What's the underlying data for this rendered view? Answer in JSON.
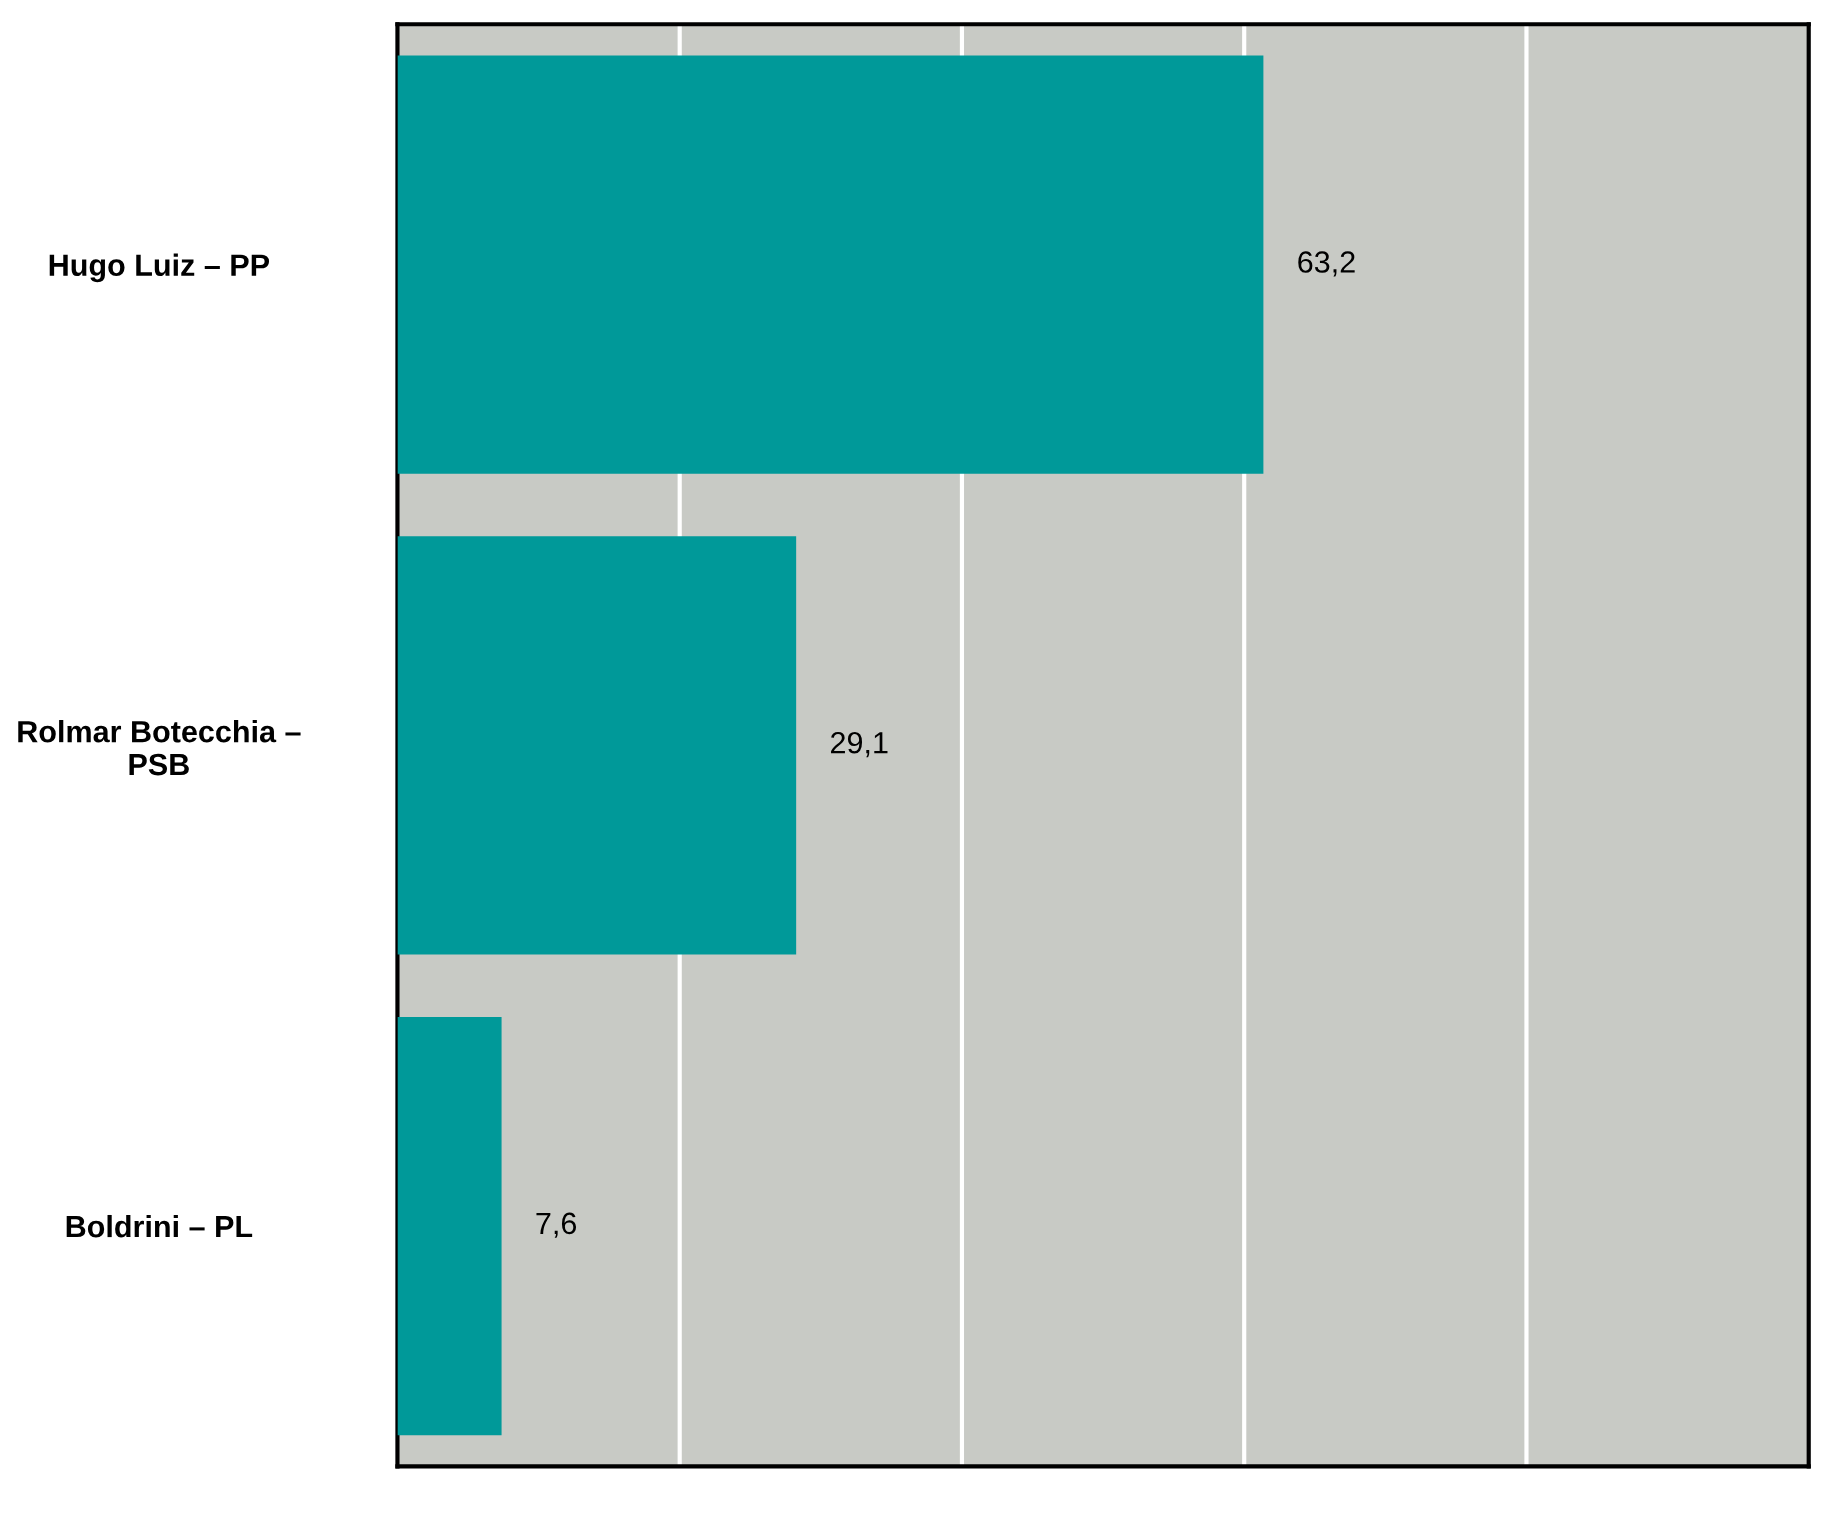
{
  "chart_data": {
    "type": "bar",
    "orientation": "horizontal",
    "categories": [
      "Hugo Luiz – PP",
      "Rolmar Botecchia –\nPSB",
      "Boldrini – PL"
    ],
    "values": [
      63.2,
      29.1,
      7.6
    ],
    "value_labels": [
      "63,2",
      "29,1",
      "7,6"
    ],
    "color": "#009999",
    "xlim": [
      0,
      103
    ],
    "xticks": [
      {
        "value": 20.6,
        "label": null
      },
      {
        "value": 41.2,
        "label": null
      },
      {
        "value": 61.8,
        "label": null
      },
      {
        "value": 82.4,
        "label": null
      }
    ],
    "grid": "x",
    "tick_labels": "y"
  }
}
